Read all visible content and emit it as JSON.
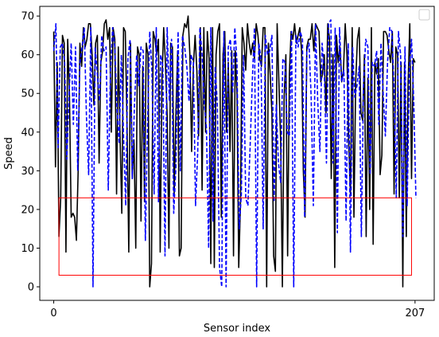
{
  "chart_data": {
    "type": "line",
    "title": "",
    "xlabel": "Sensor index",
    "ylabel": "Speed",
    "xlim": [
      -8,
      218
    ],
    "ylim": [
      -3.5,
      72.5
    ],
    "x_ticks": [
      0,
      207
    ],
    "y_ticks": [
      0,
      10,
      20,
      30,
      40,
      50,
      60,
      70
    ],
    "grid": false,
    "legend": {
      "location": "upper right",
      "entries": []
    },
    "series": [
      {
        "color": "#000000",
        "style": "solid",
        "values": [
          66,
          31,
          58,
          13,
          23,
          65,
          63,
          9,
          64,
          50,
          18,
          19,
          18,
          12,
          30,
          63,
          57,
          67,
          62,
          64,
          68,
          68,
          60,
          47,
          63,
          65,
          32,
          58,
          61,
          68,
          69,
          64,
          67,
          40,
          67,
          64,
          24,
          62,
          39,
          19,
          67,
          66,
          42,
          9,
          63,
          28,
          38,
          10,
          62,
          60,
          17,
          57,
          22,
          63,
          60,
          0,
          6,
          66,
          64,
          60,
          64,
          9,
          53,
          67,
          58,
          44,
          10,
          63,
          62,
          24,
          45,
          61,
          8,
          10,
          65,
          68,
          67,
          70,
          60,
          35,
          57,
          65,
          56,
          39,
          67,
          25,
          67,
          40,
          66,
          59,
          6,
          67,
          5,
          60,
          66,
          68,
          18,
          60,
          66,
          40,
          58,
          35,
          61,
          8,
          61,
          50,
          5,
          22,
          67,
          63,
          56,
          68,
          63,
          60,
          63,
          59,
          68,
          65,
          59,
          57,
          67,
          67,
          0,
          63,
          55,
          45,
          8,
          4,
          68,
          53,
          38,
          0,
          49,
          60,
          8,
          55,
          66,
          64,
          68,
          63,
          65,
          67,
          61,
          30,
          18,
          62,
          64,
          64,
          68,
          61,
          68,
          67,
          66,
          53,
          55,
          60,
          45,
          68,
          64,
          28,
          60,
          5,
          65,
          58,
          62,
          53,
          56,
          68,
          60,
          37,
          24,
          67,
          18,
          53,
          64,
          67,
          45,
          43,
          60,
          13,
          54,
          20,
          67,
          11,
          58,
          55,
          59,
          29,
          34,
          66,
          66,
          65,
          61,
          58,
          66,
          24,
          62,
          60,
          23,
          58,
          0,
          58,
          13,
          52,
          68,
          28,
          59,
          58
        ],
        "sample_step": 1
      },
      {
        "color": "#0000ff",
        "style": "dashed",
        "values": [
          61,
          68,
          36,
          62,
          63,
          58,
          33,
          49,
          63,
          42,
          62,
          30,
          58,
          62,
          67,
          44,
          29,
          67,
          0,
          62,
          55,
          48,
          65,
          61,
          62,
          25,
          56,
          67,
          62,
          46,
          37,
          60,
          39,
          21,
          59,
          64,
          28,
          47,
          60,
          52,
          62,
          61,
          12,
          42,
          66,
          56,
          24,
          67,
          22,
          60,
          57,
          8,
          67,
          48,
          64,
          19,
          31,
          66,
          30,
          65,
          62,
          57,
          48,
          60,
          58,
          21,
          35,
          67,
          60,
          47,
          41,
          10,
          67,
          17,
          57,
          47,
          5,
          0,
          66,
          0,
          62,
          64,
          50,
          67,
          58,
          15,
          24,
          60,
          23,
          21,
          36,
          53,
          67,
          0,
          63,
          59,
          15,
          65,
          60,
          61,
          65,
          22,
          47,
          32,
          27,
          59,
          58,
          40,
          39,
          66,
          0,
          65,
          62,
          66,
          64,
          18,
          61,
          63,
          49,
          21,
          68,
          48,
          35,
          63,
          56,
          32,
          68,
          69,
          32,
          67,
          14,
          67,
          53,
          56,
          17,
          63,
          9,
          62,
          49,
          52,
          57,
          13,
          52,
          64,
          62,
          29,
          58,
          57,
          61,
          42,
          63,
          50,
          39,
          58,
          67,
          66,
          51,
          23,
          66,
          60,
          13,
          62,
          21,
          56,
          64,
          48,
          23
        ],
        "sample_step": 1.25
      }
    ],
    "annotations": [
      {
        "type": "rectangle",
        "color": "#ff0000",
        "x0": 3,
        "x1": 205,
        "y0": 3,
        "y1": 23
      }
    ]
  }
}
